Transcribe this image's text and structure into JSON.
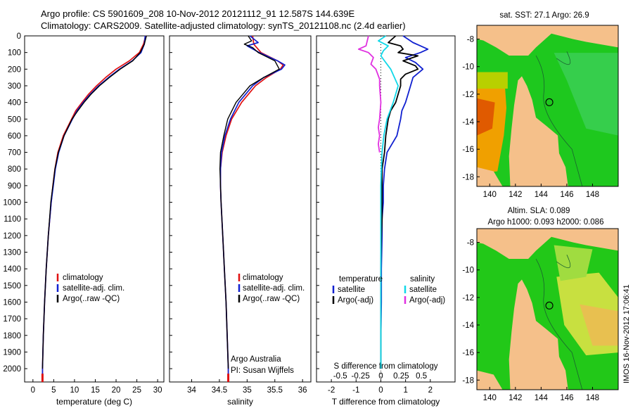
{
  "title_line1": "Argo profile: CS 5901609_208 10-Nov-2012 20121112_91 12.587S 144.639E",
  "title_line2": "Climatology: CARS2009. Satellite-adjusted climatology: synTS_20121108.nc (2.4d earlier)",
  "side_stamp": "IMOS 16-Nov-2012 17:06:41",
  "colors": {
    "climatology": "#e01010",
    "satellite": "#1020d0",
    "argo": "#000000",
    "sal_satellite": "#10d8e8",
    "sal_argo": "#e030e0",
    "land": "#f5c08a",
    "ocean_green": "#22c022"
  },
  "chart_data": [
    {
      "type": "line",
      "name": "temperature",
      "xlabel": "temperature (deg C)",
      "xlim": [
        -2,
        31.5
      ],
      "ylim": [
        0,
        2080
      ],
      "y_ticks": [
        0,
        100,
        200,
        300,
        400,
        500,
        600,
        700,
        800,
        900,
        1000,
        1100,
        1200,
        1300,
        1400,
        1500,
        1600,
        1700,
        1800,
        1900,
        2000
      ],
      "x_ticks": [
        0,
        5,
        10,
        15,
        20,
        25,
        30
      ],
      "legend": [
        "climatology",
        "satellite-adj. clim.",
        "Argo(..raw -QC)"
      ],
      "series": [
        {
          "name": "climatology",
          "depth": [
            0,
            50,
            100,
            150,
            200,
            250,
            300,
            350,
            400,
            450,
            500,
            600,
            700,
            800,
            900,
            1000,
            1200,
            1400,
            1600,
            1800,
            2000,
            2050
          ],
          "values": [
            27.1,
            26.6,
            25.6,
            23.2,
            20.0,
            17.5,
            15.3,
            13.4,
            11.8,
            10.3,
            9.3,
            7.3,
            6.0,
            5.3,
            4.8,
            4.4,
            3.7,
            3.2,
            2.8,
            2.5,
            2.3,
            2.3
          ]
        },
        {
          "name": "satellite-adj. clim.",
          "depth": [
            0,
            50,
            100,
            150,
            200,
            250,
            300,
            350,
            400,
            450,
            500,
            600,
            700,
            800,
            900,
            1000,
            1200,
            1400,
            1600,
            1800,
            2000,
            2050
          ],
          "values": [
            27.0,
            26.8,
            26.0,
            23.9,
            20.8,
            18.2,
            15.8,
            13.8,
            12.1,
            10.6,
            9.5,
            7.5,
            6.2,
            5.4,
            4.9,
            4.4,
            3.7,
            3.2,
            2.8,
            2.5,
            2.3,
            2.3
          ]
        },
        {
          "name": "Argo(..raw -QC)",
          "depth": [
            0,
            50,
            100,
            150,
            200,
            250,
            300,
            350,
            400,
            450,
            500,
            600,
            700,
            800,
            900,
            1000,
            1200,
            1400,
            1600,
            1800,
            2000
          ],
          "values": [
            27.3,
            26.8,
            25.8,
            24.0,
            21.0,
            18.4,
            16.0,
            14.0,
            12.3,
            10.8,
            9.4,
            7.5,
            6.1,
            5.3,
            4.8,
            4.3,
            3.7,
            3.2,
            2.8,
            2.5,
            2.3
          ]
        }
      ]
    },
    {
      "type": "line",
      "name": "salinity",
      "xlabel": "salinity",
      "xlim": [
        33.6,
        36.15
      ],
      "ylim": [
        0,
        2080
      ],
      "x_ticks": [
        34,
        34.5,
        35,
        35.5,
        36
      ],
      "legend": [
        "climatology",
        "satellite-adj. clim.",
        "Argo(..raw -QC)"
      ],
      "annotation": [
        "Argo Australia",
        "PI: Susan Wijffels"
      ],
      "series": [
        {
          "name": "climatology",
          "depth": [
            0,
            50,
            100,
            150,
            175,
            200,
            250,
            300,
            400,
            500,
            600,
            700,
            800,
            900,
            1000,
            1200,
            1400,
            1600,
            1800,
            2000,
            2050
          ],
          "values": [
            35.1,
            35.12,
            35.25,
            35.55,
            35.65,
            35.6,
            35.35,
            35.15,
            34.9,
            34.72,
            34.62,
            34.55,
            34.52,
            34.52,
            34.53,
            34.56,
            34.59,
            34.62,
            34.64,
            34.66,
            34.66
          ]
        },
        {
          "name": "satellite-adj. clim.",
          "depth": [
            0,
            40,
            60,
            100,
            150,
            175,
            200,
            250,
            300,
            400,
            500,
            600,
            700,
            800,
            900,
            1000,
            1200,
            1400,
            1600,
            1800,
            2000,
            2050
          ],
          "values": [
            35.05,
            35.2,
            35.0,
            35.22,
            35.55,
            35.68,
            35.62,
            35.3,
            35.1,
            34.85,
            34.7,
            34.6,
            34.54,
            34.52,
            34.52,
            34.53,
            34.56,
            34.59,
            34.62,
            34.64,
            34.66,
            34.66
          ]
        },
        {
          "name": "Argo(..raw -QC)",
          "depth": [
            0,
            30,
            50,
            70,
            100,
            150,
            200,
            250,
            300,
            400,
            500,
            600,
            700,
            800,
            900,
            1000,
            1200,
            1400,
            1600,
            1800,
            2000
          ],
          "values": [
            35.02,
            35.08,
            34.95,
            35.1,
            35.2,
            35.5,
            35.58,
            35.3,
            35.05,
            34.8,
            34.65,
            34.58,
            34.52,
            34.51,
            34.52,
            34.53,
            34.56,
            34.59,
            34.62,
            34.64,
            34.66
          ]
        }
      ]
    },
    {
      "type": "line",
      "name": "differences",
      "xlabel": "T difference from climatology",
      "xlabel_top": "S difference from climatology",
      "xlim": [
        -2.6,
        3.0
      ],
      "x_ticks_T": [
        "-2",
        "-1",
        "0",
        "1",
        "2"
      ],
      "x_ticks_T_values": [
        -2,
        -1,
        0,
        1,
        2
      ],
      "x_ticks_S": [
        "-0.5",
        "-0.25",
        "0",
        "0.25",
        "0.5"
      ],
      "x_ticks_S_values": [
        -1.64,
        -0.82,
        0,
        0.82,
        1.64
      ],
      "legend_temperature": {
        "heading": "temperature",
        "items": [
          "satellite",
          "Argo(-adj)"
        ]
      },
      "legend_salinity": {
        "heading": "salinity",
        "items": [
          "satellite",
          "Argo(-adj)"
        ]
      },
      "series": [
        {
          "name": "T satellite",
          "depth": [
            0,
            40,
            60,
            80,
            100,
            130,
            160,
            200,
            250,
            300,
            350,
            400,
            450,
            500,
            600,
            700,
            800,
            900,
            1000,
            1100,
            1200,
            1400,
            1600,
            1800,
            2000
          ],
          "values": [
            0.9,
            1.3,
            1.6,
            1.9,
            1.6,
            1.0,
            1.4,
            1.7,
            1.3,
            1.2,
            1.1,
            1.0,
            0.85,
            0.8,
            0.65,
            0.25,
            0.15,
            0.1,
            0.1,
            0.05,
            0.05,
            0.02,
            0.02,
            0.0,
            0.0
          ]
        },
        {
          "name": "T Argo(-adj)",
          "depth": [
            0,
            40,
            60,
            80,
            100,
            120,
            150,
            180,
            200,
            230,
            260,
            300,
            350,
            400,
            450,
            500,
            600,
            700,
            800,
            900,
            1000,
            1100,
            1200,
            1400,
            1600,
            1800,
            2000
          ],
          "values": [
            0.6,
            0.3,
            0.8,
            0.9,
            0.7,
            1.5,
            0.9,
            1.4,
            1.5,
            1.0,
            0.8,
            0.8,
            0.7,
            0.6,
            0.4,
            0.3,
            0.2,
            0.15,
            0.05,
            0.05,
            0.05,
            0.05,
            0.02,
            0.0,
            0.0,
            0.0,
            0.0
          ]
        },
        {
          "name": "S satellite",
          "depth": [
            0,
            30,
            60,
            90,
            120,
            150,
            200,
            250,
            300,
            400,
            500,
            600,
            700,
            800,
            900,
            1000,
            1200,
            1400,
            1600,
            1800,
            2000
          ],
          "values": [
            0.2,
            -0.1,
            0.3,
            0.1,
            0.0,
            0.15,
            0.4,
            0.55,
            0.7,
            0.5,
            0.25,
            0.12,
            0.05,
            0.02,
            0.0,
            0.0,
            0.0,
            0.0,
            0.0,
            0.0,
            0.0
          ]
        },
        {
          "name": "S Argo(-adj)",
          "depth": [
            0,
            60,
            80,
            100,
            130,
            170,
            200,
            260,
            300,
            400,
            500,
            550,
            600,
            650,
            700
          ],
          "values": [
            -0.5,
            -0.6,
            -0.9,
            -0.5,
            -0.3,
            -0.4,
            -0.2,
            -0.05,
            -0.05,
            0.0,
            -0.05,
            -0.1,
            -0.05,
            -0.1,
            -0.05
          ]
        }
      ]
    },
    {
      "type": "heatmap",
      "name": "sst-map",
      "title": "sat. SST: 27.1  Argo: 26.9",
      "x_ticks": [
        "140",
        "142",
        "144",
        "146",
        "148"
      ],
      "x_tick_values": [
        140,
        142,
        144,
        146,
        148
      ],
      "y_ticks": [
        "-8",
        "-10",
        "-12",
        "-14",
        "-16",
        "-18"
      ],
      "y_tick_values": [
        -8,
        -10,
        -12,
        -14,
        -16,
        -18
      ],
      "xlim": [
        139.0,
        150.0
      ],
      "ylim": [
        -18.7,
        -7.0
      ],
      "float_position": {
        "lon": 144.639,
        "lat": -12.587
      }
    },
    {
      "type": "heatmap",
      "name": "sla-map",
      "title_line1": "Altim. SLA: 0.089",
      "title_line2": "Argo h1000: 0.093 h2000: 0.086",
      "x_ticks": [
        "140",
        "142",
        "144",
        "146",
        "148"
      ],
      "x_tick_values": [
        140,
        142,
        144,
        146,
        148
      ],
      "y_ticks": [
        "-8",
        "-10",
        "-12",
        "-14",
        "-16",
        "-18"
      ],
      "y_tick_values": [
        -8,
        -10,
        -12,
        -14,
        -16,
        -18
      ],
      "xlim": [
        139.0,
        150.0
      ],
      "ylim": [
        -18.7,
        -7.0
      ],
      "float_position": {
        "lon": 144.639,
        "lat": -12.587
      }
    }
  ]
}
